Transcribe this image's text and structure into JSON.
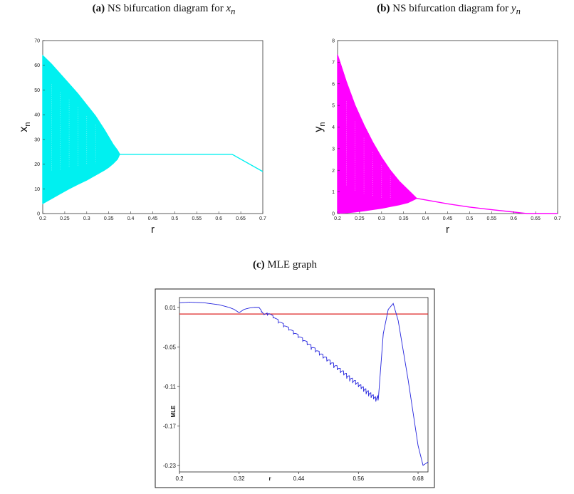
{
  "captions": {
    "a": {
      "tag": "(a)",
      "text": "NS bifurcation diagram for",
      "var": "x",
      "sub": "n"
    },
    "b": {
      "tag": "(b)",
      "text": "NS bifurcation diagram for",
      "var": "y",
      "sub": "n"
    },
    "c": {
      "tag": "(c)",
      "text": "MLE graph"
    }
  },
  "chart_data": [
    {
      "type": "area",
      "title": "(a) NS bifurcation diagram for x_n",
      "xlabel": "r",
      "ylabel": "x",
      "ylabel_sub": "n",
      "xlim": [
        0.2,
        0.7
      ],
      "ylim": [
        0,
        70
      ],
      "xticks": [
        "0.2",
        "0.25",
        "0.3",
        "0.35",
        "0.4",
        "0.45",
        "0.5",
        "0.55",
        "0.6",
        "0.65",
        "0.7"
      ],
      "yticks": [
        "0",
        "10",
        "20",
        "30",
        "40",
        "50",
        "60",
        "70"
      ],
      "color": "#00f0f0",
      "band": {
        "r": [
          0.2,
          0.22,
          0.24,
          0.26,
          0.28,
          0.3,
          0.32,
          0.34,
          0.35,
          0.36,
          0.37,
          0.375
        ],
        "upper": [
          64,
          60.5,
          56.5,
          52.5,
          48.5,
          44,
          39.5,
          34,
          31,
          28,
          25.6,
          24
        ],
        "lower": [
          4,
          6,
          8,
          10,
          11.8,
          13.5,
          15.5,
          17.5,
          18.7,
          20.2,
          22,
          24
        ]
      },
      "line": {
        "r": [
          0.375,
          0.63,
          0.7
        ],
        "x": [
          24,
          24,
          17
        ]
      }
    },
    {
      "type": "area",
      "title": "(b) NS bifurcation diagram for y_n",
      "xlabel": "r",
      "ylabel": "y",
      "ylabel_sub": "n",
      "xlim": [
        0.2,
        0.7
      ],
      "ylim": [
        0,
        8
      ],
      "xticks": [
        "0.2",
        "0.25",
        "0.3",
        "0.35",
        "0.4",
        "0.45",
        "0.5",
        "0.55",
        "0.6",
        "0.65",
        "0.7"
      ],
      "yticks": [
        "0",
        "1",
        "2",
        "3",
        "4",
        "5",
        "6",
        "7",
        "8"
      ],
      "color": "#ff00ff",
      "band": {
        "r": [
          0.2,
          0.22,
          0.24,
          0.26,
          0.28,
          0.3,
          0.32,
          0.34,
          0.36,
          0.37,
          0.38
        ],
        "upper": [
          7.35,
          6.1,
          5.0,
          4.1,
          3.3,
          2.6,
          2.0,
          1.5,
          1.1,
          0.9,
          0.7
        ],
        "lower": [
          0.0,
          0.03,
          0.07,
          0.12,
          0.18,
          0.24,
          0.32,
          0.4,
          0.5,
          0.6,
          0.7
        ]
      },
      "line": {
        "r": [
          0.38,
          0.45,
          0.5,
          0.55,
          0.6,
          0.63,
          0.7
        ],
        "y": [
          0.7,
          0.45,
          0.3,
          0.18,
          0.07,
          0.0,
          0.0
        ]
      }
    },
    {
      "type": "line",
      "title": "(c) MLE graph",
      "xlabel": "r",
      "ylabel": "MLE",
      "xlim": [
        0.2,
        0.7
      ],
      "ylim": [
        -0.24,
        0.025
      ],
      "xticks": [
        "0.2",
        "0.32",
        "0.44",
        "0.56",
        "0.68"
      ],
      "yticks": [
        "0.01",
        "-0.05",
        "-0.11",
        "-0.17",
        "-0.23"
      ],
      "reference_line": {
        "y": 0.0,
        "color": "#dd2222"
      },
      "series": [
        {
          "color": "#2222dd",
          "r": [
            0.2,
            0.22,
            0.25,
            0.28,
            0.3,
            0.31,
            0.32,
            0.33,
            0.34,
            0.35,
            0.36,
            0.365,
            0.37,
            0.38,
            0.4,
            0.44,
            0.48,
            0.52,
            0.56,
            0.58,
            0.595,
            0.6,
            0.605,
            0.61,
            0.62,
            0.63,
            0.64,
            0.66,
            0.68,
            0.69,
            0.7
          ],
          "mle": [
            0.017,
            0.018,
            0.017,
            0.014,
            0.01,
            0.007,
            0.002,
            0.007,
            0.009,
            0.01,
            0.01,
            0.005,
            -0.002,
            0.0,
            -0.012,
            -0.035,
            -0.06,
            -0.085,
            -0.11,
            -0.122,
            -0.132,
            -0.13,
            -0.08,
            -0.03,
            0.007,
            0.016,
            -0.01,
            -0.1,
            -0.2,
            -0.23,
            -0.225
          ]
        }
      ]
    }
  ]
}
